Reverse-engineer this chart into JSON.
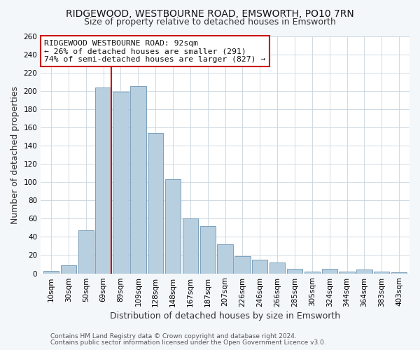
{
  "title": "RIDGEWOOD, WESTBOURNE ROAD, EMSWORTH, PO10 7RN",
  "subtitle": "Size of property relative to detached houses in Emsworth",
  "xlabel": "Distribution of detached houses by size in Emsworth",
  "ylabel": "Number of detached properties",
  "bar_labels": [
    "10sqm",
    "30sqm",
    "50sqm",
    "69sqm",
    "89sqm",
    "109sqm",
    "128sqm",
    "148sqm",
    "167sqm",
    "187sqm",
    "207sqm",
    "226sqm",
    "246sqm",
    "266sqm",
    "285sqm",
    "305sqm",
    "324sqm",
    "344sqm",
    "364sqm",
    "383sqm",
    "403sqm"
  ],
  "bar_values": [
    3,
    9,
    47,
    204,
    199,
    205,
    154,
    103,
    60,
    52,
    32,
    19,
    15,
    12,
    5,
    2,
    5,
    2,
    4,
    2,
    1
  ],
  "bar_color": "#b8cfe0",
  "bar_edge_color": "#7aa0bc",
  "highlight_index": 3,
  "vline_after_index": 3,
  "vline_color": "#cc0000",
  "ylim": [
    0,
    260
  ],
  "yticks": [
    0,
    20,
    40,
    60,
    80,
    100,
    120,
    140,
    160,
    180,
    200,
    220,
    240,
    260
  ],
  "annotation_title": "RIDGEWOOD WESTBOURNE ROAD: 92sqm",
  "annotation_line1": "← 26% of detached houses are smaller (291)",
  "annotation_line2": "74% of semi-detached houses are larger (827) →",
  "footer1": "Contains HM Land Registry data © Crown copyright and database right 2024.",
  "footer2": "Contains public sector information licensed under the Open Government Licence v3.0.",
  "bg_color": "#f4f7fa",
  "plot_bg_color": "#ffffff",
  "title_fontsize": 10,
  "subtitle_fontsize": 9,
  "ylabel_fontsize": 9,
  "xlabel_fontsize": 9,
  "tick_fontsize": 7.5,
  "footer_fontsize": 6.5,
  "ann_fontsize": 8.2
}
